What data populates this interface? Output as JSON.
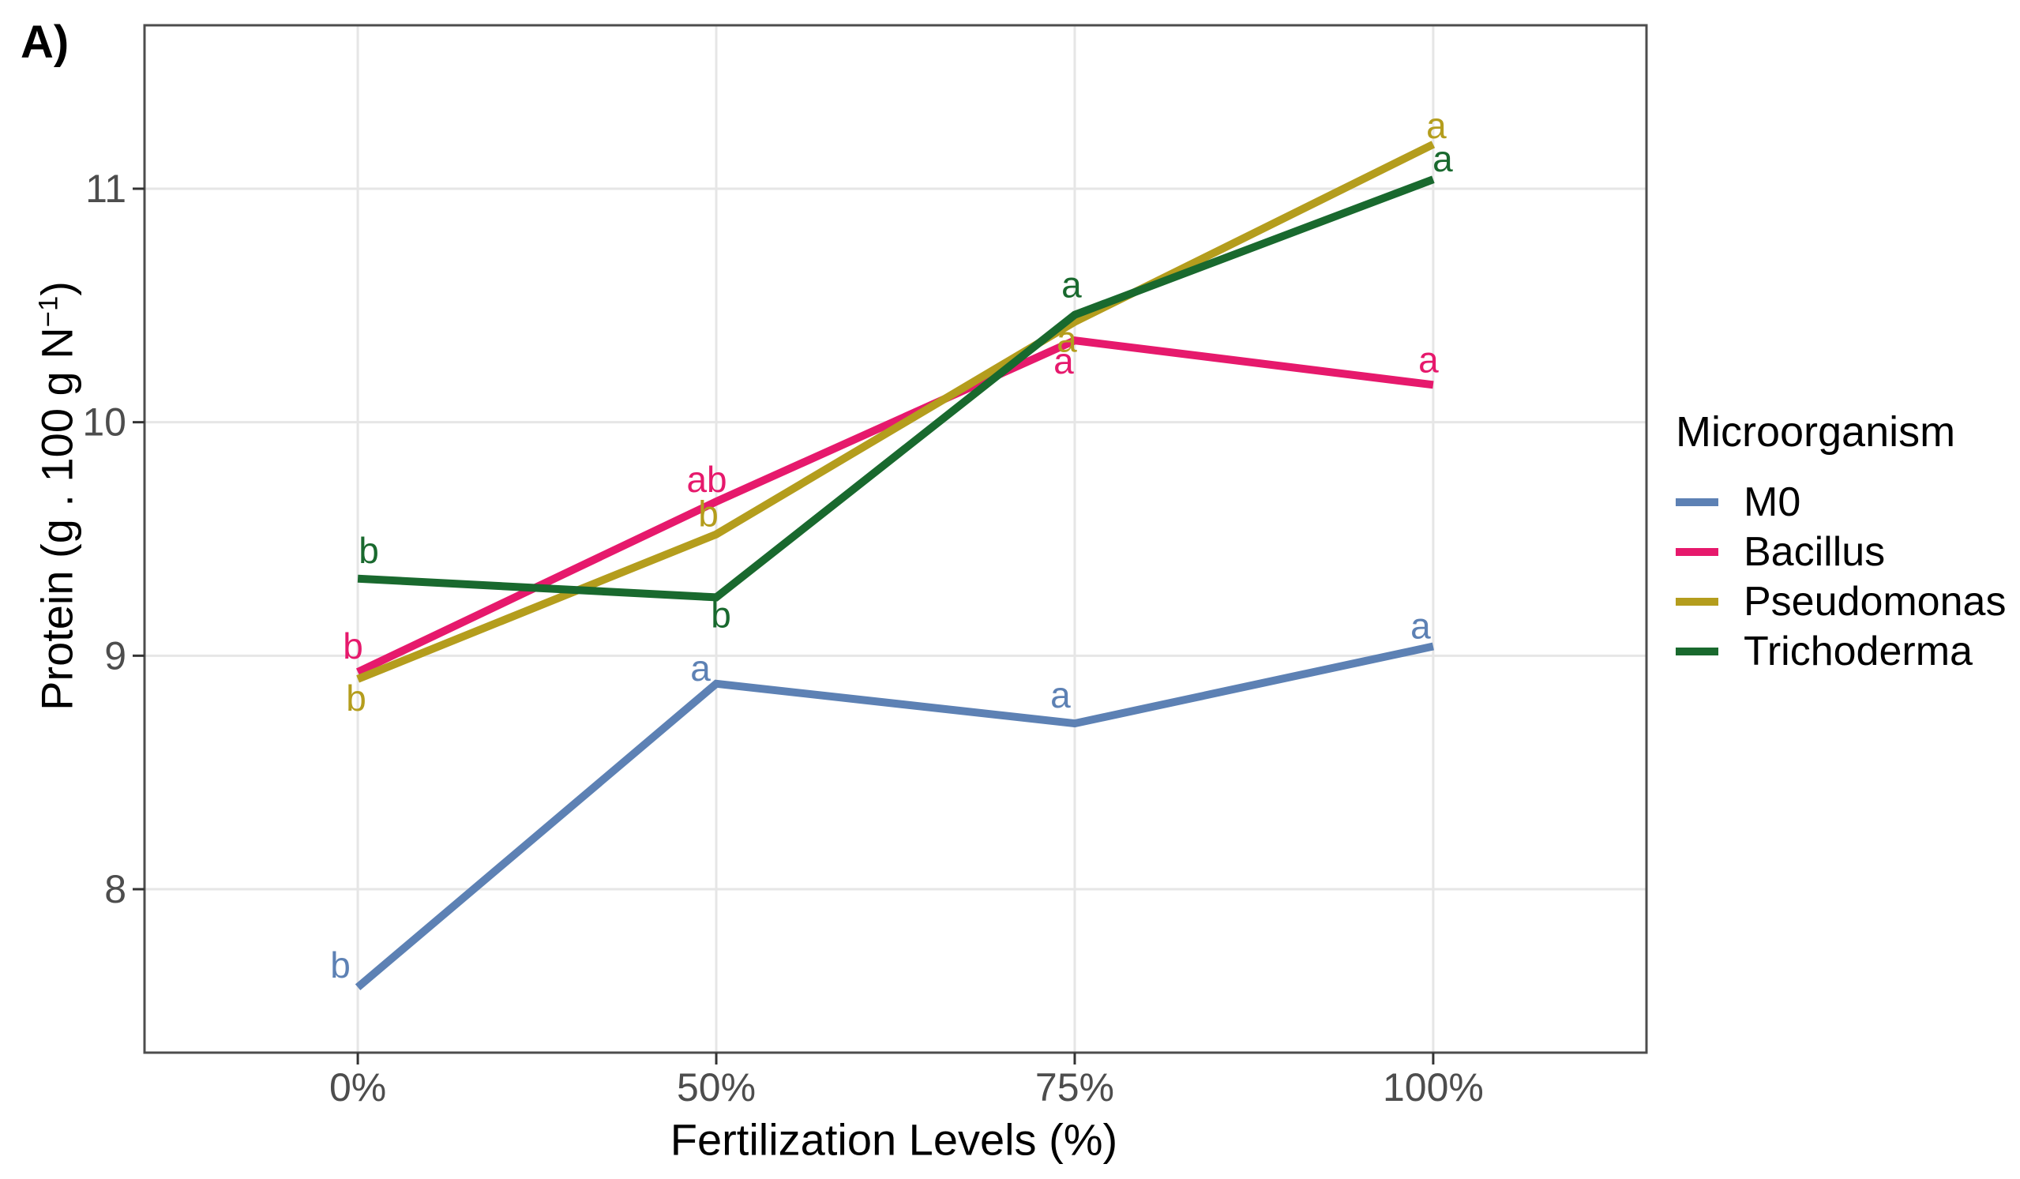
{
  "figure": {
    "panel_label": "A)"
  },
  "chart_data": {
    "type": "line",
    "title": "",
    "categories": [
      "0%",
      "50%",
      "75%",
      "100%"
    ],
    "xlabel": "Fertilization Levels (%)",
    "ylabel": {
      "pre": "Protein (g . 100 g N",
      "sup": "−1",
      "post": ")"
    },
    "ylim": [
      7.3,
      11.7
    ],
    "yticks": [
      8,
      9,
      10,
      11
    ],
    "grid": "major",
    "legend": {
      "title": "Microorganism",
      "position": "right"
    },
    "axis_colors": {
      "tick_label": "#4d4d4d",
      "tick_mark": "#333333",
      "panel_border": "#4d4d4d",
      "gridline": "#e6e6e6"
    },
    "series": [
      {
        "name": "M0",
        "color": "#5d81b4",
        "values": [
          7.58,
          8.88,
          8.71,
          9.04
        ],
        "sig_letters": [
          "b",
          "a",
          "a",
          "a"
        ],
        "letter_offsets": [
          [
            -22,
            -12
          ],
          [
            -20,
            -4
          ],
          [
            -18,
            -20
          ],
          [
            -16,
            -10
          ]
        ]
      },
      {
        "name": "Bacillus",
        "color": "#e6196c",
        "values": [
          8.93,
          9.66,
          10.35,
          10.16
        ],
        "sig_letters": [
          "b",
          "ab",
          "a",
          "a"
        ],
        "letter_offsets": [
          [
            -6,
            -17
          ],
          [
            -12,
            -12
          ],
          [
            -14,
            42
          ],
          [
            -6,
            -16
          ]
        ]
      },
      {
        "name": "Pseudomonas",
        "color": "#b49d1d",
        "values": [
          8.9,
          9.52,
          10.43,
          11.19
        ],
        "sig_letters": [
          "b",
          "b",
          "a",
          "a"
        ],
        "letter_offsets": [
          [
            -2,
            40
          ],
          [
            -10,
            -10
          ],
          [
            -10,
            38
          ],
          [
            4,
            -8
          ]
        ]
      },
      {
        "name": "Trichoderma",
        "color": "#19692e",
        "values": [
          9.33,
          9.25,
          10.46,
          11.04
        ],
        "sig_letters": [
          "b",
          "b",
          "a",
          "a"
        ],
        "letter_offsets": [
          [
            14,
            -20
          ],
          [
            6,
            38
          ],
          [
            -4,
            -22
          ],
          [
            12,
            -10
          ]
        ]
      }
    ]
  }
}
